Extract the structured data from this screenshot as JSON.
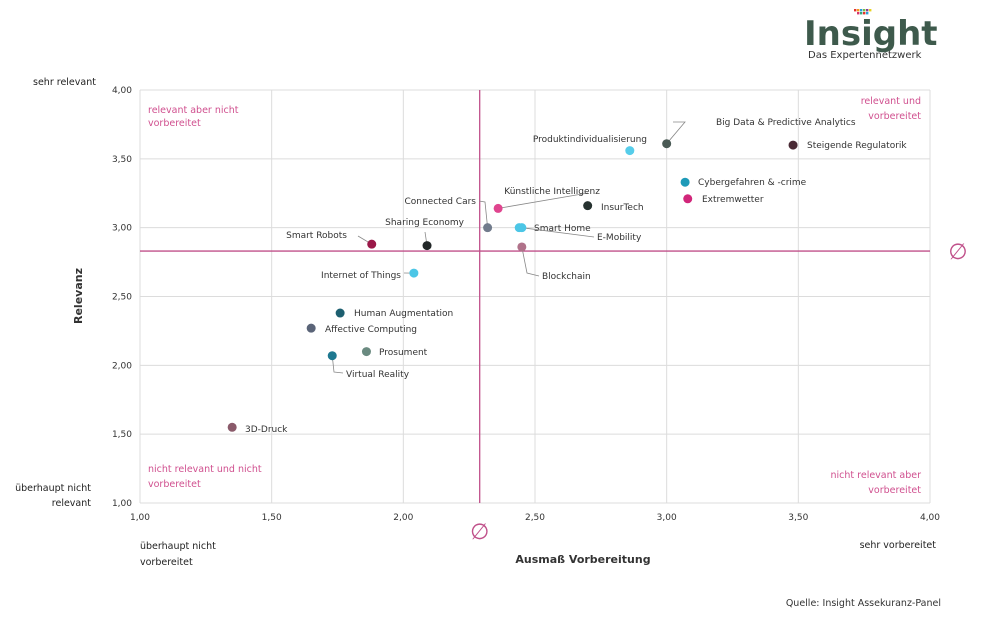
{
  "logo": {
    "name": "Insight",
    "tagline": "Das Expertennetzwerk",
    "color": "#3e5a4c"
  },
  "source": "Quelle: Insight Assekuranz-Panel",
  "chart_data": {
    "type": "scatter",
    "xlabel": "Ausmaß Vorbereitung",
    "ylabel": "Relevanz",
    "xlim": [
      1.0,
      4.0
    ],
    "ylim": [
      1.0,
      4.0
    ],
    "x_ticks": [
      "1,00",
      "1,50",
      "2,00",
      "2,50",
      "3,00",
      "3,50",
      "4,00"
    ],
    "y_ticks": [
      "1,00",
      "1,50",
      "2,00",
      "2,50",
      "3,00",
      "3,50",
      "4,00"
    ],
    "x_tick_values": [
      1.0,
      1.5,
      2.0,
      2.5,
      3.0,
      3.5,
      4.0
    ],
    "y_tick_values": [
      1.0,
      1.5,
      2.0,
      2.5,
      3.0,
      3.5,
      4.0
    ],
    "grid": true,
    "x_min_label": [
      "überhaupt nicht",
      "vorbereitet"
    ],
    "x_max_label": "sehr vorbereitet",
    "y_min_label": [
      "überhaupt nicht",
      "relevant"
    ],
    "y_max_label": "sehr relevant",
    "mean": {
      "x": 2.29,
      "y": 2.83,
      "symbol": "∅",
      "color": "#c0508a"
    },
    "quadrants": {
      "top_left": [
        "relevant aber nicht",
        "vorbereitet"
      ],
      "top_right": [
        "relevant und",
        "vorbereitet"
      ],
      "bottom_left": [
        "nicht relevant und nicht",
        "vorbereitet"
      ],
      "bottom_right": [
        "nicht relevant aber",
        "vorbereitet"
      ]
    },
    "points": [
      {
        "name": "Big Data & Predictive Analytics",
        "x": 3.0,
        "y": 3.61,
        "color": "#4a5a55"
      },
      {
        "name": "Steigende Regulatorik",
        "x": 3.48,
        "y": 3.6,
        "color": "#4a2a35"
      },
      {
        "name": "Produktindividualisierung",
        "x": 2.86,
        "y": 3.56,
        "color": "#56cdea"
      },
      {
        "name": "Cybergefahren & -crime",
        "x": 3.07,
        "y": 3.33,
        "color": "#1e9ab8"
      },
      {
        "name": "Extremwetter",
        "x": 3.08,
        "y": 3.21,
        "color": "#d1267a"
      },
      {
        "name": "InsurTech",
        "x": 2.7,
        "y": 3.16,
        "color": "#263230"
      },
      {
        "name": "Künstliche Intelligenz",
        "x": 2.36,
        "y": 3.14,
        "color": "#e0458f"
      },
      {
        "name": "Connected Cars",
        "x": 2.32,
        "y": 3.0,
        "color": "#717b8c"
      },
      {
        "name": "Smart Home",
        "x": 2.44,
        "y": 3.0,
        "color": "#4cc6e6"
      },
      {
        "name": "E-Mobility",
        "x": 2.45,
        "y": 3.0,
        "color": "#4cc6e6"
      },
      {
        "name": "Blockchain",
        "x": 2.45,
        "y": 2.86,
        "color": "#b0728a"
      },
      {
        "name": "Smart Robots",
        "x": 1.88,
        "y": 2.88,
        "color": "#9a1848"
      },
      {
        "name": "Sharing Economy",
        "x": 2.09,
        "y": 2.87,
        "color": "#222728"
      },
      {
        "name": "Internet of Things",
        "x": 2.04,
        "y": 2.67,
        "color": "#4cc6e6"
      },
      {
        "name": "Human Augmentation",
        "x": 1.76,
        "y": 2.38,
        "color": "#1d5f70"
      },
      {
        "name": "Affective Computing",
        "x": 1.65,
        "y": 2.27,
        "color": "#5a6478"
      },
      {
        "name": "Prosument",
        "x": 1.86,
        "y": 2.1,
        "color": "#6a8a80"
      },
      {
        "name": "Virtual Reality",
        "x": 1.73,
        "y": 2.07,
        "color": "#1e7890"
      },
      {
        "name": "3D-Druck",
        "x": 1.35,
        "y": 1.55,
        "color": "#8a5a6a"
      }
    ]
  }
}
